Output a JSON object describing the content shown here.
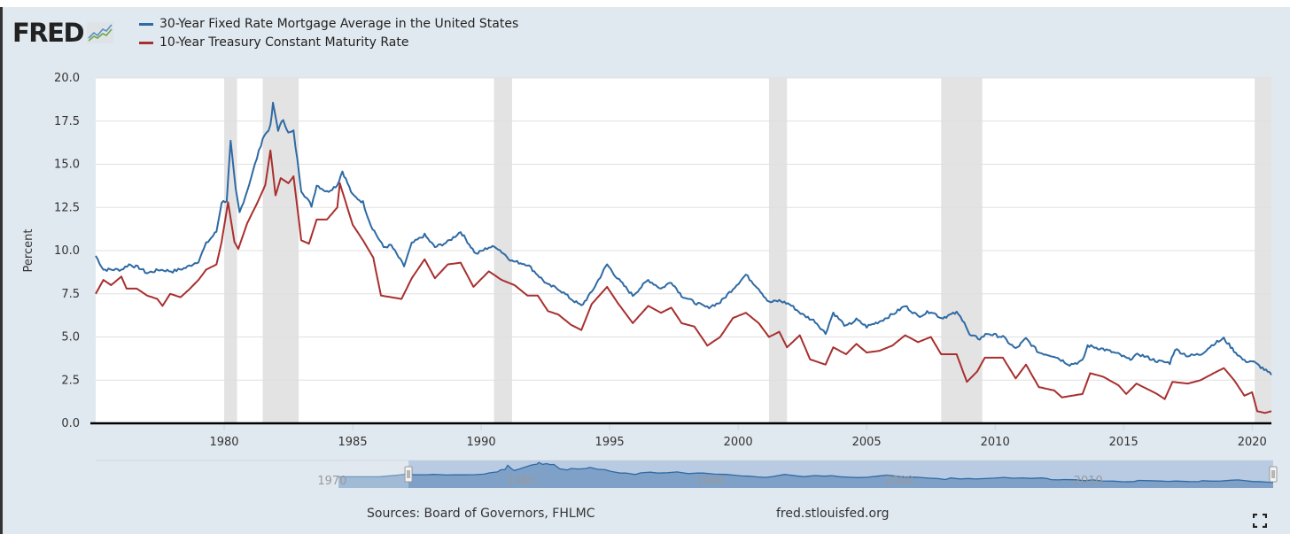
{
  "logo": {
    "text": "FRED",
    "icon": "chart-line-icon"
  },
  "footer": {
    "source": "Sources: Board of Governors, FHLMC",
    "url": "fred.stlouisfed.org",
    "fullscreen_icon": "fullscreen-icon"
  },
  "navigator": {
    "labels": [
      "1970",
      "1980",
      "1990",
      "2000",
      "2010"
    ],
    "selected_range": [
      "1975",
      "2020"
    ]
  },
  "colors": {
    "mortgage": "#2f6aa3",
    "treasury": "#a82f2f",
    "recession": "#e3e3e3",
    "background": "#e1e9f0"
  },
  "chart_data": {
    "type": "line",
    "title": "",
    "xlabel": "",
    "ylabel": "Percent",
    "xlim": [
      1975.0,
      2020.75
    ],
    "ylim": [
      0,
      20
    ],
    "yticks": [
      "0.0",
      "2.5",
      "5.0",
      "7.5",
      "10.0",
      "12.5",
      "15.0",
      "17.5",
      "20.0"
    ],
    "xticks": [
      "1980",
      "1985",
      "1990",
      "1995",
      "2000",
      "2005",
      "2010",
      "2015",
      "2020"
    ],
    "grid": true,
    "legend": "top-left",
    "recessions": [
      [
        1980.0,
        1980.5
      ],
      [
        1981.5,
        1982.9
      ],
      [
        1990.5,
        1991.2
      ],
      [
        2001.2,
        2001.9
      ],
      [
        2007.9,
        2009.5
      ],
      [
        2020.1,
        2020.75
      ]
    ],
    "series": [
      {
        "name": "30-Year Fixed Rate Mortgage Average in the United States",
        "points": [
          [
            1975.0,
            9.7
          ],
          [
            1975.3,
            8.9
          ],
          [
            1975.7,
            8.9
          ],
          [
            1976.0,
            8.9
          ],
          [
            1976.3,
            9.2
          ],
          [
            1976.7,
            9.0
          ],
          [
            1977.0,
            8.7
          ],
          [
            1977.5,
            8.9
          ],
          [
            1978.0,
            8.8
          ],
          [
            1978.5,
            9.0
          ],
          [
            1979.0,
            9.4
          ],
          [
            1979.3,
            10.4
          ],
          [
            1979.7,
            11.1
          ],
          [
            1979.9,
            12.8
          ],
          [
            1980.1,
            12.9
          ],
          [
            1980.25,
            16.3
          ],
          [
            1980.45,
            13.5
          ],
          [
            1980.6,
            12.2
          ],
          [
            1980.9,
            13.5
          ],
          [
            1981.2,
            15.0
          ],
          [
            1981.5,
            16.5
          ],
          [
            1981.8,
            17.2
          ],
          [
            1981.9,
            18.5
          ],
          [
            1982.1,
            17.0
          ],
          [
            1982.3,
            17.6
          ],
          [
            1982.5,
            16.8
          ],
          [
            1982.7,
            16.9
          ],
          [
            1983.0,
            13.5
          ],
          [
            1983.4,
            12.6
          ],
          [
            1983.6,
            13.8
          ],
          [
            1984.0,
            13.4
          ],
          [
            1984.4,
            13.8
          ],
          [
            1984.6,
            14.6
          ],
          [
            1985.0,
            13.2
          ],
          [
            1985.4,
            12.8
          ],
          [
            1985.7,
            11.5
          ],
          [
            1986.2,
            10.2
          ],
          [
            1986.5,
            10.3
          ],
          [
            1987.0,
            9.1
          ],
          [
            1987.3,
            10.4
          ],
          [
            1987.8,
            10.9
          ],
          [
            1988.2,
            10.2
          ],
          [
            1988.7,
            10.5
          ],
          [
            1989.2,
            11.1
          ],
          [
            1989.8,
            9.8
          ],
          [
            1990.3,
            10.2
          ],
          [
            1990.6,
            10.2
          ],
          [
            1991.2,
            9.4
          ],
          [
            1991.8,
            9.2
          ],
          [
            1992.2,
            8.6
          ],
          [
            1992.6,
            8.0
          ],
          [
            1993.0,
            7.8
          ],
          [
            1993.5,
            7.2
          ],
          [
            1993.9,
            6.8
          ],
          [
            1994.3,
            7.6
          ],
          [
            1994.9,
            9.2
          ],
          [
            1995.3,
            8.4
          ],
          [
            1995.9,
            7.4
          ],
          [
            1996.5,
            8.3
          ],
          [
            1997.0,
            7.8
          ],
          [
            1997.4,
            8.2
          ],
          [
            1997.8,
            7.4
          ],
          [
            1998.3,
            7.0
          ],
          [
            1998.8,
            6.7
          ],
          [
            1999.3,
            7.0
          ],
          [
            1999.8,
            7.8
          ],
          [
            2000.3,
            8.6
          ],
          [
            2000.8,
            7.8
          ],
          [
            2001.2,
            7.0
          ],
          [
            2001.6,
            7.1
          ],
          [
            2002.0,
            6.9
          ],
          [
            2002.5,
            6.3
          ],
          [
            2003.0,
            5.9
          ],
          [
            2003.4,
            5.2
          ],
          [
            2003.7,
            6.4
          ],
          [
            2004.2,
            5.6
          ],
          [
            2004.6,
            6.0
          ],
          [
            2005.0,
            5.6
          ],
          [
            2005.5,
            5.9
          ],
          [
            2006.0,
            6.3
          ],
          [
            2006.5,
            6.8
          ],
          [
            2007.0,
            6.2
          ],
          [
            2007.5,
            6.5
          ],
          [
            2007.9,
            6.1
          ],
          [
            2008.5,
            6.4
          ],
          [
            2008.8,
            5.9
          ],
          [
            2009.0,
            5.1
          ],
          [
            2009.4,
            4.9
          ],
          [
            2009.7,
            5.2
          ],
          [
            2010.3,
            5.0
          ],
          [
            2010.8,
            4.3
          ],
          [
            2011.2,
            4.9
          ],
          [
            2011.7,
            4.1
          ],
          [
            2012.3,
            3.9
          ],
          [
            2012.9,
            3.4
          ],
          [
            2013.4,
            3.6
          ],
          [
            2013.6,
            4.5
          ],
          [
            2014.2,
            4.3
          ],
          [
            2014.8,
            4.0
          ],
          [
            2015.2,
            3.7
          ],
          [
            2015.6,
            4.0
          ],
          [
            2016.3,
            3.6
          ],
          [
            2016.8,
            3.5
          ],
          [
            2017.0,
            4.3
          ],
          [
            2017.5,
            3.9
          ],
          [
            2018.0,
            4.0
          ],
          [
            2018.5,
            4.6
          ],
          [
            2018.9,
            4.9
          ],
          [
            2019.3,
            4.2
          ],
          [
            2019.7,
            3.6
          ],
          [
            2020.0,
            3.6
          ],
          [
            2020.4,
            3.2
          ],
          [
            2020.75,
            2.8
          ]
        ]
      },
      {
        "name": "10-Year Treasury Constant Maturity Rate",
        "points": [
          [
            1975.0,
            7.5
          ],
          [
            1975.3,
            8.3
          ],
          [
            1975.6,
            8.0
          ],
          [
            1976.0,
            8.5
          ],
          [
            1976.2,
            7.8
          ],
          [
            1976.6,
            7.8
          ],
          [
            1977.0,
            7.4
          ],
          [
            1977.4,
            7.2
          ],
          [
            1977.6,
            6.8
          ],
          [
            1977.9,
            7.5
          ],
          [
            1978.3,
            7.3
          ],
          [
            1978.6,
            7.7
          ],
          [
            1979.0,
            8.3
          ],
          [
            1979.3,
            8.9
          ],
          [
            1979.7,
            9.2
          ],
          [
            1979.9,
            10.5
          ],
          [
            1980.15,
            12.8
          ],
          [
            1980.4,
            10.5
          ],
          [
            1980.55,
            10.1
          ],
          [
            1980.9,
            11.6
          ],
          [
            1981.3,
            12.8
          ],
          [
            1981.6,
            13.8
          ],
          [
            1981.8,
            15.8
          ],
          [
            1982.0,
            13.2
          ],
          [
            1982.2,
            14.2
          ],
          [
            1982.5,
            13.9
          ],
          [
            1982.7,
            14.3
          ],
          [
            1983.0,
            10.6
          ],
          [
            1983.3,
            10.4
          ],
          [
            1983.6,
            11.8
          ],
          [
            1984.0,
            11.8
          ],
          [
            1984.4,
            12.5
          ],
          [
            1984.5,
            13.9
          ],
          [
            1985.0,
            11.5
          ],
          [
            1985.4,
            10.6
          ],
          [
            1985.8,
            9.6
          ],
          [
            1986.1,
            7.4
          ],
          [
            1986.5,
            7.3
          ],
          [
            1986.9,
            7.2
          ],
          [
            1987.3,
            8.4
          ],
          [
            1987.8,
            9.5
          ],
          [
            1988.2,
            8.4
          ],
          [
            1988.7,
            9.2
          ],
          [
            1989.2,
            9.3
          ],
          [
            1989.7,
            7.9
          ],
          [
            1990.3,
            8.8
          ],
          [
            1990.8,
            8.3
          ],
          [
            1991.3,
            8.0
          ],
          [
            1991.8,
            7.4
          ],
          [
            1992.2,
            7.4
          ],
          [
            1992.6,
            6.5
          ],
          [
            1993.0,
            6.3
          ],
          [
            1993.5,
            5.7
          ],
          [
            1993.9,
            5.4
          ],
          [
            1994.3,
            6.9
          ],
          [
            1994.9,
            7.9
          ],
          [
            1995.3,
            7.0
          ],
          [
            1995.9,
            5.8
          ],
          [
            1996.5,
            6.8
          ],
          [
            1997.0,
            6.4
          ],
          [
            1997.4,
            6.7
          ],
          [
            1997.8,
            5.8
          ],
          [
            1998.3,
            5.6
          ],
          [
            1998.8,
            4.5
          ],
          [
            1999.3,
            5.0
          ],
          [
            1999.8,
            6.1
          ],
          [
            2000.3,
            6.4
          ],
          [
            2000.8,
            5.8
          ],
          [
            2001.2,
            5.0
          ],
          [
            2001.6,
            5.3
          ],
          [
            2001.9,
            4.4
          ],
          [
            2002.4,
            5.1
          ],
          [
            2002.8,
            3.7
          ],
          [
            2003.4,
            3.4
          ],
          [
            2003.7,
            4.4
          ],
          [
            2004.2,
            4.0
          ],
          [
            2004.6,
            4.6
          ],
          [
            2005.0,
            4.1
          ],
          [
            2005.5,
            4.2
          ],
          [
            2006.0,
            4.5
          ],
          [
            2006.5,
            5.1
          ],
          [
            2007.0,
            4.7
          ],
          [
            2007.5,
            5.0
          ],
          [
            2007.9,
            4.0
          ],
          [
            2008.5,
            4.0
          ],
          [
            2008.9,
            2.4
          ],
          [
            2009.3,
            3.0
          ],
          [
            2009.6,
            3.8
          ],
          [
            2010.3,
            3.8
          ],
          [
            2010.8,
            2.6
          ],
          [
            2011.2,
            3.4
          ],
          [
            2011.7,
            2.1
          ],
          [
            2012.3,
            1.9
          ],
          [
            2012.6,
            1.5
          ],
          [
            2013.4,
            1.7
          ],
          [
            2013.7,
            2.9
          ],
          [
            2014.2,
            2.7
          ],
          [
            2014.8,
            2.2
          ],
          [
            2015.1,
            1.7
          ],
          [
            2015.5,
            2.3
          ],
          [
            2016.3,
            1.7
          ],
          [
            2016.6,
            1.4
          ],
          [
            2016.9,
            2.4
          ],
          [
            2017.5,
            2.3
          ],
          [
            2018.0,
            2.5
          ],
          [
            2018.5,
            2.9
          ],
          [
            2018.9,
            3.2
          ],
          [
            2019.3,
            2.5
          ],
          [
            2019.7,
            1.6
          ],
          [
            2020.0,
            1.8
          ],
          [
            2020.2,
            0.7
          ],
          [
            2020.5,
            0.6
          ],
          [
            2020.75,
            0.7
          ]
        ]
      }
    ]
  }
}
